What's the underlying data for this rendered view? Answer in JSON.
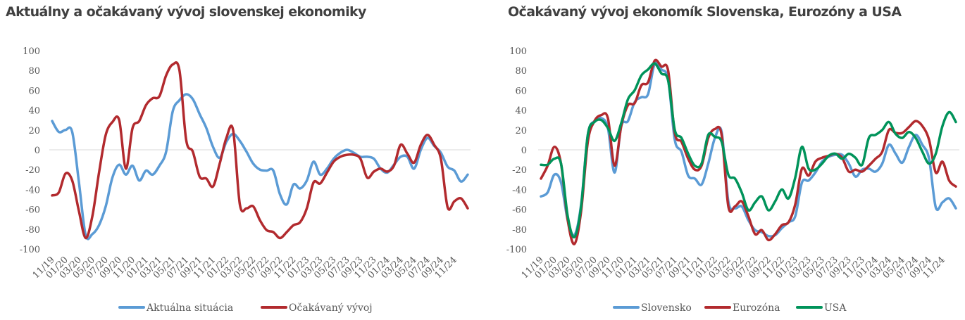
{
  "chart_data": [
    {
      "type": "line",
      "title": "Aktuálny a očakávaný vývoj slovenskej ekonomiky",
      "xlabel": "",
      "ylabel": "",
      "ylim": [
        -100,
        100
      ],
      "yticks": [
        100,
        80,
        60,
        40,
        20,
        0,
        -20,
        -40,
        -60,
        -80,
        -100
      ],
      "x_tick_labels": [
        "11/19",
        "01/20",
        "03/20",
        "05/20",
        "07/20",
        "09/20",
        "11/20",
        "01/21",
        "03/21",
        "05/21",
        "07/21",
        "09/21",
        "11/21",
        "01/22",
        "03/22",
        "05/22",
        "07/22",
        "09/22",
        "11/22",
        "01/23",
        "03/23",
        "05/23",
        "07/23",
        "09/23",
        "11/23",
        "01/24",
        "03/24",
        "05/24",
        "07/24",
        "09/24",
        "11/24"
      ],
      "x_frequency": "monthly, labels every 2 months",
      "grid": "zero line only",
      "legend": "bottom",
      "series": [
        {
          "name": "Aktuálna situácia",
          "color": "#5b9bd5",
          "values": [
            29,
            18,
            20,
            18,
            -33,
            -86,
            -85,
            -76,
            -57,
            -28,
            -15,
            -25,
            -16,
            -31,
            -21,
            -25,
            -16,
            -2,
            39,
            50,
            56,
            51,
            36,
            22,
            3,
            -8,
            8,
            16,
            9,
            -2,
            -14,
            -20,
            -21,
            -21,
            -45,
            -55,
            -35,
            -39,
            -31,
            -12,
            -25,
            -19,
            -9,
            -3,
            0,
            -3,
            -7,
            -7,
            -9,
            -19,
            -23,
            -15,
            -7,
            -7,
            -19,
            0,
            12,
            4,
            -3,
            -17,
            -21,
            -32,
            -25
          ]
        },
        {
          "name": "Očakávaný vývoj",
          "color": "#b22a2e",
          "values": [
            -46,
            -43,
            -24,
            -31,
            -62,
            -89,
            -67,
            -23,
            15,
            28,
            30,
            -19,
            22,
            29,
            45,
            52,
            54,
            75,
            86,
            80,
            10,
            -2,
            -27,
            -29,
            -37,
            -14,
            12,
            20,
            -55,
            -59,
            -57,
            -71,
            -81,
            -83,
            -89,
            -83,
            -76,
            -73,
            -59,
            -33,
            -34,
            -23,
            -12,
            -7,
            -5,
            -5,
            -9,
            -28,
            -22,
            -19,
            -22,
            -16,
            5,
            -4,
            -13,
            5,
            15,
            5,
            -9,
            -58,
            -52,
            -49,
            -59
          ]
        }
      ]
    },
    {
      "type": "line",
      "title": "Očakávaný vývoj ekonomík Slovenska, Eurozóny a USA",
      "xlabel": "",
      "ylabel": "",
      "ylim": [
        -100,
        100
      ],
      "yticks": [
        100,
        80,
        60,
        40,
        20,
        0,
        -20,
        -40,
        -60,
        -80,
        -100
      ],
      "x_tick_labels": [
        "11/19",
        "01/20",
        "03/20",
        "05/20",
        "07/20",
        "09/20",
        "11/20",
        "01/21",
        "03/21",
        "05/21",
        "07/21",
        "09/21",
        "11/21",
        "01/22",
        "03/22",
        "05/22",
        "07/22",
        "09/22",
        "11/22",
        "01/23",
        "03/23",
        "05/23",
        "07/23",
        "09/23",
        "11/23",
        "01/24",
        "03/24",
        "05/24",
        "07/24",
        "09/24",
        "11/24"
      ],
      "x_frequency": "monthly, labels every 2 months",
      "grid": "zero line only",
      "legend": "bottom",
      "series": [
        {
          "name": "Slovensko",
          "color": "#5b9bd5",
          "values": [
            -47,
            -43,
            -25,
            -33,
            -71,
            -86,
            -55,
            15,
            29,
            32,
            22,
            -23,
            24,
            29,
            48,
            53,
            56,
            87,
            81,
            71,
            10,
            -2,
            -26,
            -29,
            -35,
            -14,
            12,
            18,
            -52,
            -59,
            -57,
            -71,
            -81,
            -83,
            -87,
            -86,
            -79,
            -73,
            -67,
            -33,
            -31,
            -23,
            -12,
            -7,
            -5,
            -5,
            -14,
            -27,
            -20,
            -19,
            -22,
            -14,
            5,
            -4,
            -13,
            3,
            15,
            5,
            -9,
            -58,
            -53,
            -49,
            -59
          ]
        },
        {
          "name": "Eurozóna",
          "color": "#b22a2e",
          "values": [
            -29,
            -16,
            3,
            -14,
            -71,
            -95,
            -62,
            8,
            29,
            35,
            32,
            -16,
            24,
            45,
            47,
            65,
            68,
            90,
            84,
            80,
            17,
            8,
            -9,
            -20,
            -16,
            12,
            21,
            15,
            -57,
            -57,
            -52,
            -67,
            -85,
            -81,
            -91,
            -85,
            -76,
            -73,
            -55,
            -19,
            -26,
            -12,
            -8,
            -6,
            -4,
            -8,
            -22,
            -20,
            -22,
            -16,
            -9,
            -2,
            20,
            17,
            17,
            23,
            29,
            24,
            10,
            -23,
            -12,
            -31,
            -37
          ]
        },
        {
          "name": "USA",
          "color": "#00935a",
          "values": [
            -15,
            -15,
            -9,
            -14,
            -67,
            -88,
            -57,
            15,
            28,
            30,
            22,
            9,
            27,
            51,
            60,
            75,
            81,
            87,
            77,
            70,
            20,
            12,
            -4,
            -16,
            -14,
            15,
            13,
            8,
            -25,
            -29,
            -43,
            -61,
            -53,
            -47,
            -61,
            -52,
            -40,
            -49,
            -28,
            3,
            -19,
            -20,
            -14,
            -6,
            -4,
            -9,
            -4,
            -8,
            -15,
            12,
            15,
            20,
            28,
            16,
            12,
            18,
            12,
            -2,
            -14,
            -4,
            24,
            38,
            28
          ]
        }
      ]
    }
  ]
}
